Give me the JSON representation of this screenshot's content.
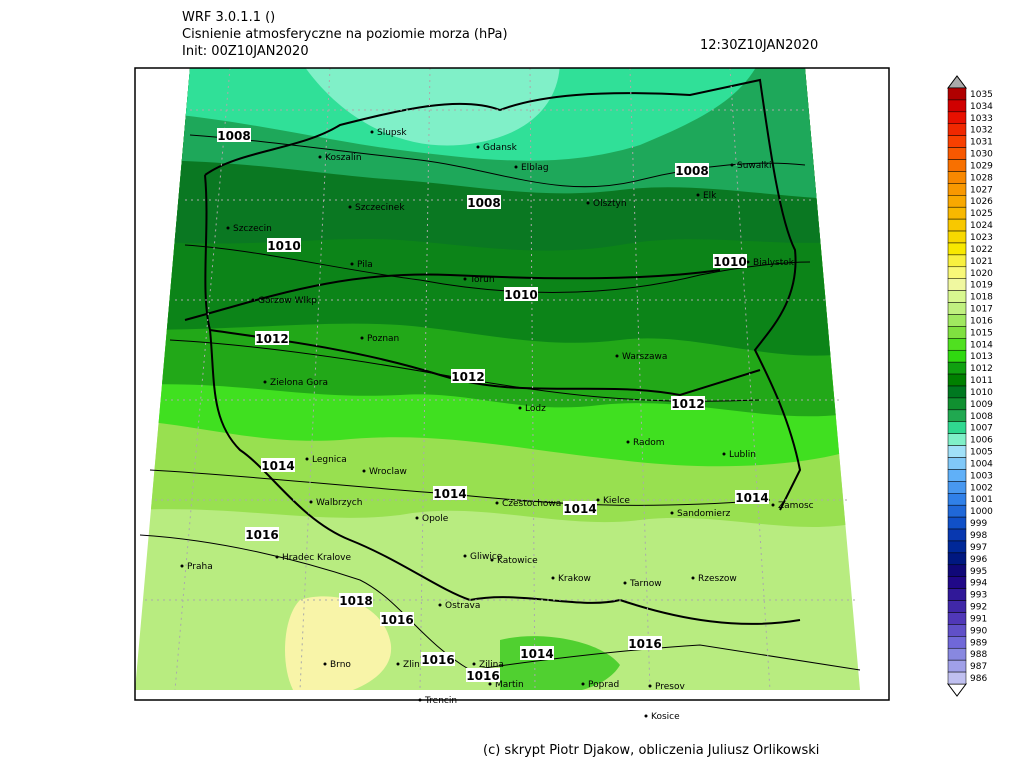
{
  "header": {
    "model": "WRF 3.0.1.1 ()",
    "title": "Cisnienie atmosferyczne na poziomie morza (hPa)",
    "init": "Init: 00Z10JAN2020",
    "valid": "12:30Z10JAN2020"
  },
  "cities": [
    "Slupsk",
    "Koszalin",
    "Gdansk",
    "Elblag",
    "Suwalki",
    "Elk",
    "Szczecinek",
    "Olsztyn",
    "Szczecin",
    "Pila",
    "Torun",
    "Bialystok",
    "Gorzow Wlkp",
    "Poznan",
    "Warszawa",
    "Zielona Gora",
    "Lodz",
    "Radom",
    "Legnica",
    "Lublin",
    "Wroclaw",
    "Walbrzych",
    "Czestochowa",
    "Kielce",
    "Zamosc",
    "Opole",
    "Sandomierz",
    "Praha",
    "Hradec Kralove",
    "Gliwice",
    "Katowice",
    "Krakow",
    "Tarnow",
    "Rzeszow",
    "Ostrava",
    "Brno",
    "Zlin",
    "Zilina",
    "Martin",
    "Poprad",
    "Presov",
    "Kosice",
    "Trencin"
  ],
  "contour_labels": [
    1008,
    1008,
    1008,
    1010,
    1010,
    1010,
    1012,
    1012,
    1012,
    1014,
    1014,
    1014,
    1014,
    1016,
    1016,
    1016,
    1016,
    1016,
    1018,
    1014
  ],
  "colorbar": {
    "levels": [
      1035,
      1034,
      1033,
      1032,
      1031,
      1030,
      1029,
      1028,
      1027,
      1026,
      1025,
      1024,
      1023,
      1022,
      1021,
      1020,
      1019,
      1018,
      1017,
      1016,
      1015,
      1014,
      1013,
      1012,
      1011,
      1010,
      1009,
      1008,
      1007,
      1006,
      1005,
      1004,
      1003,
      1002,
      1001,
      1000,
      999,
      998,
      997,
      996,
      995,
      994,
      993,
      992,
      991,
      990,
      989,
      988,
      987,
      986
    ],
    "colors": [
      "#b00000",
      "#d00000",
      "#e81000",
      "#f02800",
      "#f84000",
      "#f85800",
      "#f87000",
      "#f88800",
      "#f89800",
      "#f8a800",
      "#f8b800",
      "#f8c800",
      "#f8d800",
      "#f8e800",
      "#f8f040",
      "#f8f878",
      "#f0f8a0",
      "#d8f890",
      "#c0f080",
      "#a0e860",
      "#80e040",
      "#50e020",
      "#30d810",
      "#10a010",
      "#008000",
      "#007820",
      "#109030",
      "#20a850",
      "#30d890",
      "#80f0c8",
      "#a0e0f8",
      "#80c8f8",
      "#60b0f8",
      "#4898f0",
      "#3080e8",
      "#2068d8",
      "#1050c8",
      "#0838b0",
      "#002898",
      "#001880",
      "#100878",
      "#200888",
      "#301898",
      "#4028a8",
      "#5038b8",
      "#6050c8",
      "#7068d8",
      "#8888e0",
      "#a0a0e8",
      "#c0c0f0"
    ]
  },
  "footer": "(c) skrypt Piotr Djakow, obliczenia Juliusz Orlikowski"
}
